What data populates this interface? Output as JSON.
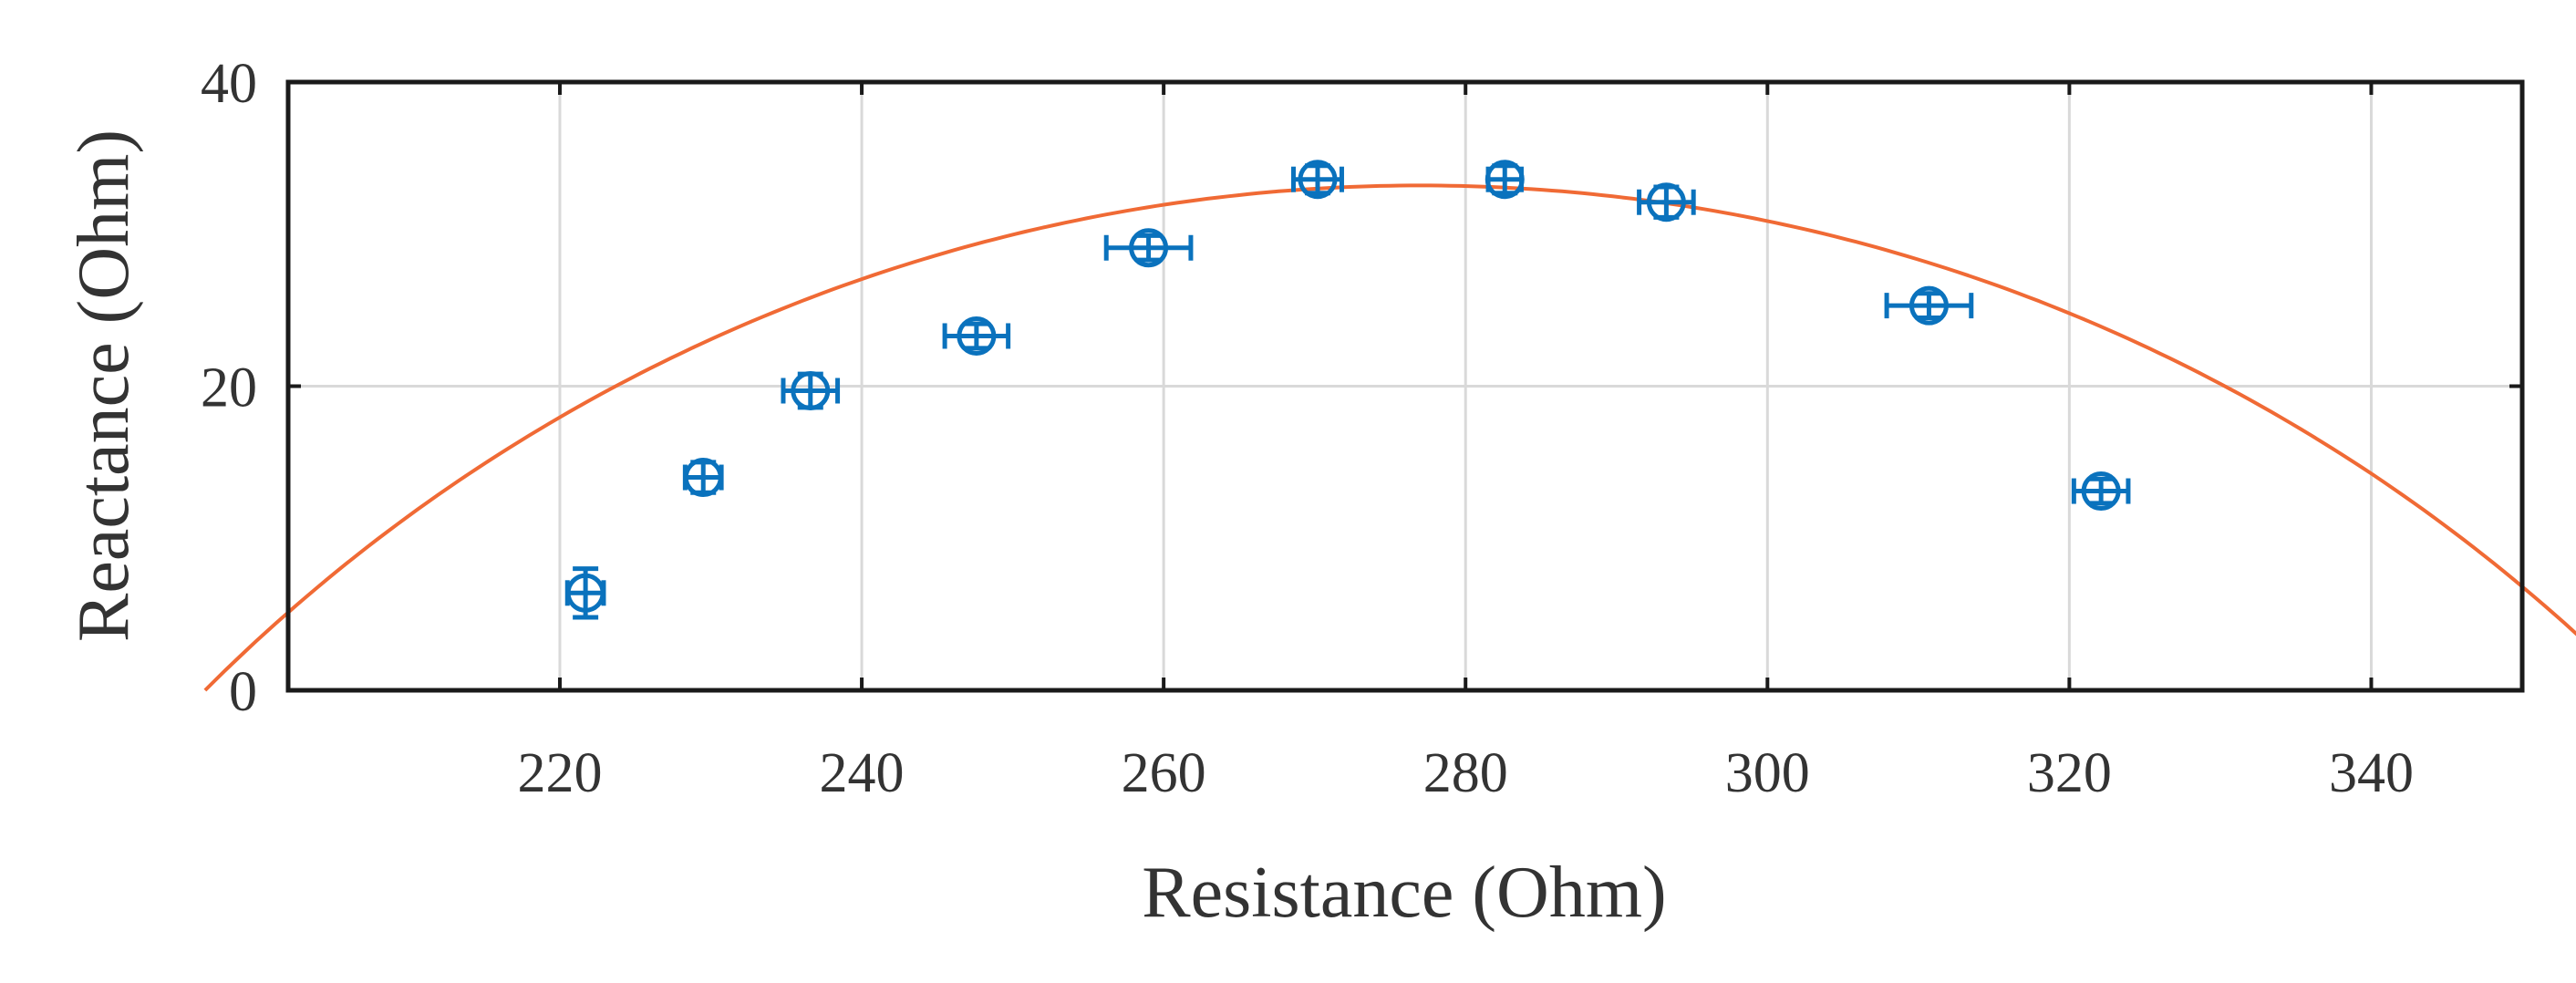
{
  "chart_data": {
    "type": "scatter",
    "title": "",
    "xlabel": "Resistance (Ohm)",
    "ylabel": "Reactance (Ohm)",
    "xlim": [
      202,
      350
    ],
    "ylim": [
      0,
      40
    ],
    "xticks": [
      220,
      240,
      260,
      280,
      300,
      320,
      340
    ],
    "yticks": [
      0,
      20,
      40
    ],
    "grid": true,
    "series": [
      {
        "marker": "circle",
        "color": "#0a72bd",
        "points": [
          {
            "x": 221.7,
            "y": 6.4,
            "xerr": 1.2,
            "yerr": 1.6
          },
          {
            "x": 229.5,
            "y": 14.0,
            "xerr": 1.2,
            "yerr": 1.0
          },
          {
            "x": 236.6,
            "y": 19.7,
            "xerr": 1.8,
            "yerr": 1.1
          },
          {
            "x": 247.6,
            "y": 23.3,
            "xerr": 2.1,
            "yerr": 0.8
          },
          {
            "x": 259.0,
            "y": 29.1,
            "xerr": 2.8,
            "yerr": 0.8
          },
          {
            "x": 270.2,
            "y": 33.6,
            "xerr": 1.6,
            "yerr": 0.9
          },
          {
            "x": 282.6,
            "y": 33.6,
            "xerr": 1.1,
            "yerr": 0.9
          },
          {
            "x": 293.3,
            "y": 32.1,
            "xerr": 1.8,
            "yerr": 1.0
          },
          {
            "x": 310.7,
            "y": 25.3,
            "xerr": 2.8,
            "yerr": 0.8
          },
          {
            "x": 322.1,
            "y": 13.1,
            "xerr": 1.8,
            "yerr": 0.8
          }
        ]
      },
      {
        "marker": "line",
        "color": "#f06a35",
        "fit": "circle",
        "center": [
          277.0,
          -81.0
        ],
        "radius": 114.2
      }
    ]
  }
}
